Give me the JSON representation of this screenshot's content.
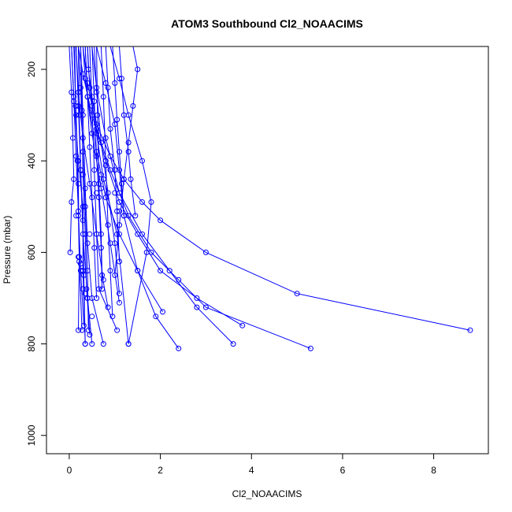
{
  "chart_data": {
    "type": "line",
    "title": "ATOM3 Southbound Cl2_NOAACIMS",
    "xlabel": "Cl2_NOAACIMS",
    "ylabel": "Pressure (mbar)",
    "xlim": [
      -0.5,
      9.2
    ],
    "ylim": [
      1040,
      150
    ],
    "y_reversed": true,
    "xticks": [
      0,
      2,
      4,
      6,
      8
    ],
    "yticks": [
      200,
      400,
      600,
      800,
      1000
    ],
    "series_color": "#0000ff",
    "marker": "open-circle",
    "series": [
      {
        "x": [
          0.4,
          0.42,
          0.5,
          0.6,
          0.9,
          1.2,
          1.6,
          2.0,
          3.0,
          5.0,
          8.8
        ],
        "y": [
          150,
          200,
          260,
          320,
          390,
          440,
          490,
          530,
          600,
          690,
          770
        ]
      },
      {
        "x": [
          0.3,
          0.4,
          0.6,
          0.9,
          1.3,
          1.8,
          2.4,
          3.0,
          5.3
        ],
        "y": [
          150,
          230,
          330,
          420,
          520,
          600,
          660,
          720,
          810
        ]
      },
      {
        "x": [
          0.2,
          0.3,
          0.5,
          0.8,
          1.1,
          1.5,
          2.0,
          2.8,
          3.8
        ],
        "y": [
          150,
          210,
          300,
          400,
          490,
          560,
          640,
          700,
          760
        ]
      },
      {
        "x": [
          0.5,
          0.6,
          0.8,
          1.1,
          1.6,
          2.2,
          2.8,
          3.6
        ],
        "y": [
          150,
          240,
          350,
          470,
          560,
          640,
          720,
          800
        ]
      },
      {
        "x": [
          0.35,
          0.4,
          0.6,
          0.8,
          1.1,
          1.5,
          1.9,
          2.4
        ],
        "y": [
          150,
          260,
          380,
          480,
          560,
          640,
          740,
          810
        ]
      },
      {
        "x": [
          1.4,
          1.5,
          1.4,
          1.3,
          1.2,
          1.1,
          1.0
        ],
        "y": [
          150,
          200,
          280,
          360,
          440,
          540,
          650
        ]
      },
      {
        "x": [
          0.6,
          0.8,
          1.0,
          1.1,
          1.2,
          1.5,
          2.05
        ],
        "y": [
          150,
          230,
          320,
          420,
          520,
          640,
          730
        ]
      },
      {
        "x": [
          0.9,
          1.1,
          1.3,
          1.6,
          1.8,
          1.7,
          1.3
        ],
        "y": [
          150,
          220,
          300,
          400,
          490,
          600,
          800
        ]
      },
      {
        "x": [
          0.05,
          0.1,
          0.2,
          0.3,
          0.3,
          0.35
        ],
        "y": [
          150,
          260,
          400,
          500,
          640,
          800
        ]
      },
      {
        "x": [
          0.15,
          0.2,
          0.25,
          0.3,
          0.4,
          0.5
        ],
        "y": [
          150,
          280,
          420,
          560,
          700,
          800
        ]
      },
      {
        "x": [
          0.25,
          0.3,
          0.35,
          0.4,
          0.5,
          0.75
        ],
        "y": [
          150,
          300,
          460,
          580,
          700,
          800
        ]
      },
      {
        "x": [
          0.1,
          0.15,
          0.2,
          0.22,
          0.28
        ],
        "y": [
          150,
          300,
          450,
          620,
          770
        ]
      },
      {
        "x": [
          0.45,
          0.5,
          0.55,
          0.6,
          0.65,
          1.05
        ],
        "y": [
          150,
          280,
          420,
          560,
          680,
          770
        ]
      },
      {
        "x": [
          0.7,
          0.75,
          0.8,
          0.85,
          0.9,
          0.95
        ],
        "y": [
          150,
          260,
          400,
          540,
          640,
          740
        ]
      },
      {
        "x": [
          0.2,
          0.25,
          0.3,
          0.35,
          0.4,
          0.42
        ],
        "y": [
          150,
          240,
          380,
          500,
          640,
          770
        ]
      },
      {
        "x": [
          0.3,
          0.35,
          0.5,
          0.7,
          0.9,
          1.1
        ],
        "y": [
          150,
          220,
          340,
          460,
          580,
          710
        ]
      },
      {
        "x": [
          0.55,
          0.6,
          0.7,
          0.85,
          1.0,
          1.1
        ],
        "y": [
          150,
          250,
          360,
          470,
          580,
          690
        ]
      },
      {
        "x": [
          0.15,
          0.2,
          0.3,
          0.45,
          0.6,
          0.75
        ],
        "y": [
          150,
          250,
          350,
          450,
          560,
          660
        ]
      },
      {
        "x": [
          0.05,
          0.1,
          0.15,
          0.2,
          0.25,
          0.32
        ],
        "y": [
          150,
          270,
          390,
          510,
          640,
          760
        ]
      },
      {
        "x": [
          0.8,
          0.85,
          0.9,
          1.0,
          1.05,
          1.1
        ],
        "y": [
          150,
          240,
          330,
          420,
          510,
          620
        ]
      },
      {
        "x": [
          0.35,
          0.4,
          0.45,
          0.5,
          0.55,
          0.6
        ],
        "y": [
          150,
          260,
          370,
          480,
          590,
          700
        ]
      },
      {
        "x": [
          0.0,
          0.05,
          0.08,
          0.1,
          0.05,
          0.02
        ],
        "y": [
          150,
          250,
          350,
          440,
          490,
          600
        ]
      },
      {
        "x": [
          0.25,
          0.28,
          0.3,
          0.35,
          0.38,
          0.45
        ],
        "y": [
          150,
          290,
          430,
          560,
          680,
          780
        ]
      },
      {
        "x": [
          0.6,
          0.62,
          0.65,
          0.7,
          0.72,
          0.85
        ],
        "y": [
          150,
          300,
          450,
          560,
          650,
          720
        ]
      },
      {
        "x": [
          0.12,
          0.14,
          0.18,
          0.2,
          0.22,
          0.2
        ],
        "y": [
          150,
          280,
          400,
          520,
          610,
          770
        ]
      },
      {
        "x": [
          0.4,
          0.45,
          0.6,
          0.75,
          1.05,
          1.3
        ],
        "y": [
          150,
          240,
          340,
          440,
          560,
          800
        ]
      },
      {
        "x": [
          1.1,
          1.15,
          1.2,
          1.3,
          1.35,
          1.45
        ],
        "y": [
          150,
          220,
          300,
          380,
          440,
          520
        ]
      },
      {
        "x": [
          0.95,
          1.0,
          1.05,
          1.1,
          1.15,
          1.2
        ],
        "y": [
          150,
          230,
          310,
          380,
          450,
          520
        ]
      },
      {
        "x": [
          0.5,
          0.55,
          0.6,
          0.65,
          0.7,
          0.72
        ],
        "y": [
          150,
          270,
          390,
          480,
          590,
          680
        ]
      },
      {
        "x": [
          0.2,
          0.22,
          0.25,
          0.3,
          0.32,
          0.35
        ],
        "y": [
          150,
          300,
          420,
          530,
          650,
          800
        ]
      }
    ],
    "isolated_points": {
      "x": [
        0.2,
        0.25,
        0.3,
        0.55,
        0.6,
        1.0,
        1.1,
        0.3,
        0.35,
        0.4,
        0.15,
        0.45,
        0.7,
        0.8,
        0.5
      ],
      "y": [
        610,
        625,
        640,
        450,
        470,
        470,
        510,
        680,
        690,
        700,
        520,
        560,
        430,
        410,
        740
      ]
    }
  }
}
